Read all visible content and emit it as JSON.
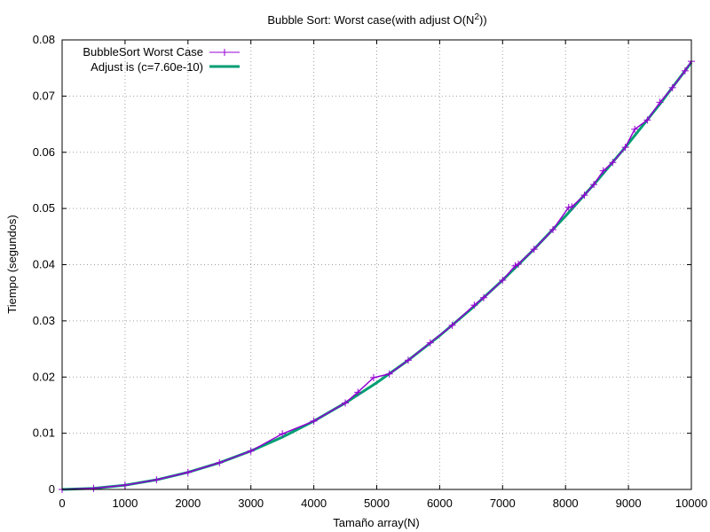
{
  "chart_data": {
    "type": "line",
    "title": "Bubble Sort: Worst case(with adjust O(N",
    "title_superscript": "2",
    "title_end": "))",
    "xlabel": "Tamaño array(N)",
    "ylabel": "Tiempo (segundos)",
    "xlim": [
      0,
      10000
    ],
    "ylim": [
      0,
      0.08
    ],
    "xticks": [
      0,
      1000,
      2000,
      3000,
      4000,
      5000,
      6000,
      7000,
      8000,
      9000,
      10000
    ],
    "yticks": [
      0,
      0.01,
      0.02,
      0.03,
      0.04,
      0.05,
      0.06,
      0.07,
      0.08
    ],
    "xtick_labels": [
      "0",
      "1000",
      "2000",
      "3000",
      "4000",
      "5000",
      "6000",
      "7000",
      "8000",
      "9000",
      "10000"
    ],
    "ytick_labels": [
      "0",
      "0.01",
      "0.02",
      "0.03",
      "0.04",
      "0.05",
      "0.06",
      "0.07",
      "0.08"
    ],
    "grid": true,
    "legend_position": "top-left",
    "series": [
      {
        "name": "BubbleSort Worst Case",
        "style": "line+points",
        "marker": "plus",
        "color": "#9400d3",
        "x": [
          0,
          500,
          1000,
          1500,
          2000,
          2500,
          3000,
          3500,
          4000,
          4500,
          4700,
          4950,
          5200,
          5500,
          5850,
          6200,
          6550,
          6700,
          7000,
          7200,
          7250,
          7500,
          7800,
          8050,
          8100,
          8300,
          8450,
          8600,
          8750,
          8950,
          9100,
          9300,
          9500,
          9700,
          9900,
          10000
        ],
        "y": [
          0.0,
          0.00019,
          0.00076,
          0.00171,
          0.00304,
          0.00475,
          0.00684,
          0.0099,
          0.01216,
          0.01539,
          0.0173,
          0.0199,
          0.02055,
          0.02299,
          0.0261,
          0.02921,
          0.0328,
          0.03412,
          0.03724,
          0.0398,
          0.0401,
          0.04275,
          0.04624,
          0.0502,
          0.0503,
          0.05236,
          0.05427,
          0.0567,
          0.05819,
          0.06088,
          0.0641,
          0.06573,
          0.0689,
          0.0715,
          0.0745,
          0.0762
        ]
      },
      {
        "name": "Adjust is (c=7.60e-10)",
        "style": "line",
        "color": "#009e73",
        "c": 7.6e-10,
        "x": [
          0,
          500,
          1000,
          1500,
          2000,
          2500,
          3000,
          3500,
          4000,
          4500,
          5000,
          5500,
          6000,
          6500,
          7000,
          7500,
          8000,
          8500,
          9000,
          9500,
          10000
        ],
        "y": [
          0.0,
          0.00019,
          0.00076,
          0.00171,
          0.00304,
          0.00475,
          0.00684,
          0.00931,
          0.01216,
          0.01539,
          0.019,
          0.02299,
          0.02736,
          0.03211,
          0.03724,
          0.04275,
          0.04864,
          0.05491,
          0.06156,
          0.06859,
          0.076
        ]
      }
    ]
  }
}
